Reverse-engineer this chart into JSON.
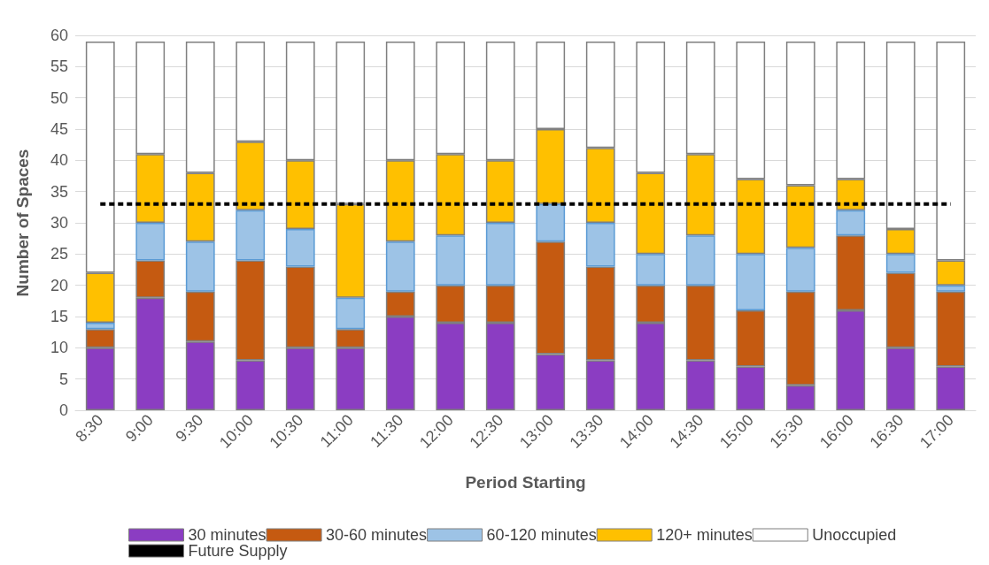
{
  "chart_data": {
    "type": "bar",
    "stacked": true,
    "xlabel": "Period Starting",
    "ylabel": "Number of Spaces",
    "categories": [
      "8:30",
      "9:00",
      "9:30",
      "10:00",
      "10:30",
      "11:00",
      "11:30",
      "12:00",
      "12:30",
      "13:00",
      "13:30",
      "14:00",
      "14:30",
      "15:00",
      "15:30",
      "16:00",
      "16:30",
      "17:00"
    ],
    "series": [
      {
        "name": "30 minutes",
        "color": "#8b3dc2",
        "values": [
          10,
          18,
          11,
          8,
          10,
          10,
          15,
          14,
          14,
          9,
          8,
          14,
          8,
          7,
          4,
          16,
          10,
          7
        ]
      },
      {
        "name": "30-60 minutes",
        "color": "#c55a11",
        "values": [
          3,
          6,
          8,
          16,
          13,
          3,
          4,
          6,
          6,
          18,
          15,
          6,
          12,
          9,
          15,
          12,
          12,
          12
        ]
      },
      {
        "name": "60-120 minutes",
        "color": "#9dc3e6",
        "values": [
          1,
          6,
          8,
          8,
          6,
          5,
          8,
          8,
          10,
          6,
          7,
          5,
          8,
          9,
          7,
          4,
          3,
          1
        ]
      },
      {
        "name": "120+ minutes",
        "color": "#ffc000",
        "values": [
          8,
          11,
          11,
          11,
          11,
          15,
          13,
          13,
          10,
          12,
          12,
          13,
          13,
          12,
          10,
          5,
          4,
          4
        ]
      },
      {
        "name": "Unoccupied",
        "color": "#ffffff",
        "values": [
          37,
          18,
          21,
          16,
          19,
          26,
          19,
          18,
          19,
          14,
          17,
          21,
          18,
          22,
          23,
          22,
          30,
          35
        ]
      },
      {
        "name": "Future Supply",
        "type": "line",
        "color": "#000000",
        "line_style": "dashed",
        "marker": "none",
        "values": [
          33,
          33,
          33,
          33,
          33,
          33,
          33,
          33,
          33,
          33,
          33,
          33,
          33,
          33,
          33,
          33,
          33,
          33
        ]
      }
    ],
    "ylim": [
      0,
      60
    ],
    "yticks": [
      0,
      5,
      10,
      15,
      20,
      25,
      30,
      35,
      40,
      45,
      50,
      55,
      60
    ],
    "grid": "y",
    "legend": "bottom"
  }
}
